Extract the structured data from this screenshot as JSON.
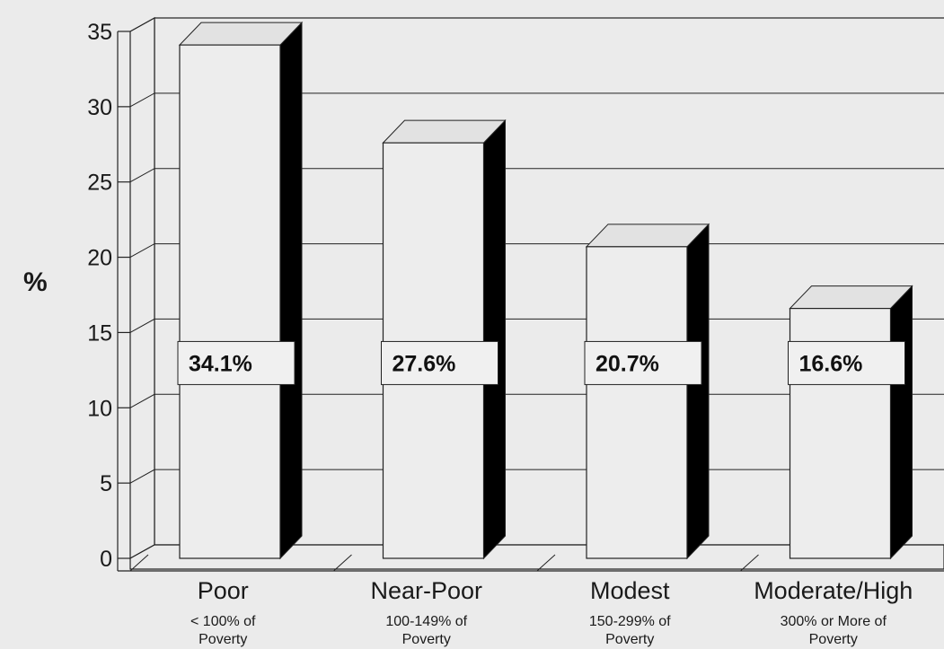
{
  "chart_data": {
    "type": "bar",
    "title": "",
    "xlabel": "",
    "ylabel": "%",
    "ylim": [
      0,
      35
    ],
    "yticks": [
      "0",
      "5",
      "10",
      "15",
      "20",
      "25",
      "30",
      "35"
    ],
    "grid": true,
    "legend": "none",
    "categories": [
      "Poor",
      "Near-Poor",
      "Modest",
      "Moderate/High"
    ],
    "subcategories": [
      [
        "< 100% of",
        "Poverty"
      ],
      [
        "100-149% of",
        "Poverty"
      ],
      [
        "150-299% of",
        "Poverty"
      ],
      [
        "300% or More of",
        "Poverty"
      ]
    ],
    "values": [
      34.1,
      27.6,
      20.7,
      16.6
    ],
    "value_labels": [
      "34.1%",
      "27.6%",
      "20.7%",
      "16.6%"
    ],
    "colors": {
      "bar_front": "#ededed",
      "bar_top": "#e2e2e2",
      "bar_side": "#000000",
      "background": "#ebebeb",
      "lines": "#222222"
    }
  }
}
